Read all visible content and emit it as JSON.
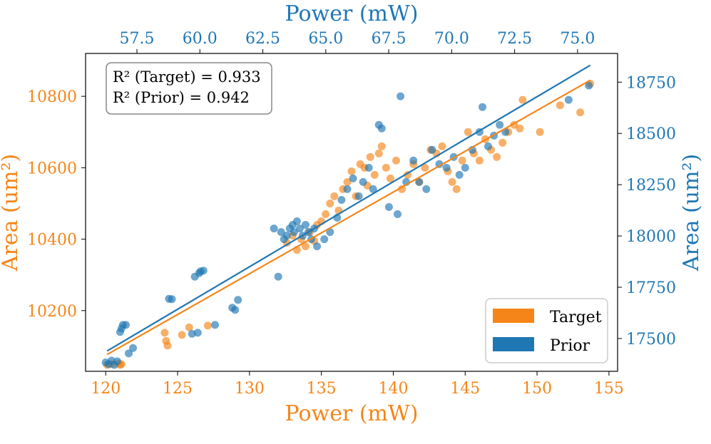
{
  "chart_data": {
    "type": "scatter",
    "annotation": [
      "R² (Target) = 0.933",
      "R² (Prior) = 0.942"
    ],
    "axes": {
      "bottom": {
        "label": "Power (mW)",
        "range": [
          118.6,
          155.6
        ],
        "ticks": [
          120,
          125,
          130,
          135,
          140,
          145,
          150,
          155
        ],
        "color": "#f58518"
      },
      "top": {
        "label": "Power (mW)",
        "range": [
          55.46,
          76.59
        ],
        "ticks": [
          "57.5",
          "60.0",
          "62.5",
          "65.0",
          "67.5",
          "70.0",
          "72.5",
          "75.0"
        ],
        "color": "#1f77b4"
      },
      "left": {
        "label": "Area (um²)",
        "range": [
          10030,
          10920
        ],
        "ticks": [
          10200,
          10400,
          10600,
          10800
        ],
        "color": "#f58518"
      },
      "right": {
        "label": "Area (um²)",
        "range": [
          17340,
          18890
        ],
        "ticks": [
          17500,
          17750,
          18000,
          18250,
          18500,
          18750
        ],
        "color": "#1f77b4"
      }
    },
    "grid": false,
    "legend": {
      "placement": "bottom-right",
      "entries": [
        {
          "name": "Target",
          "color": "#f58518"
        },
        {
          "name": "Prior",
          "color": "#1f77b4"
        }
      ]
    },
    "series": [
      {
        "name": "Target",
        "color": "#f58518",
        "fit_line": [
          [
            120.1,
            10077
          ],
          [
            153.7,
            10845
          ]
        ],
        "points": [
          [
            120.1,
            10048
          ],
          [
            120.4,
            10050
          ],
          [
            120.9,
            10052
          ],
          [
            121.0,
            10048
          ],
          [
            121.1,
            10050
          ],
          [
            124.1,
            10138
          ],
          [
            124.2,
            10115
          ],
          [
            124.3,
            10102
          ],
          [
            125.3,
            10132
          ],
          [
            125.8,
            10153
          ],
          [
            127.1,
            10158
          ],
          [
            132.6,
            10390
          ],
          [
            133.0,
            10410
          ],
          [
            133.3,
            10370
          ],
          [
            133.6,
            10400
          ],
          [
            133.9,
            10380
          ],
          [
            134.2,
            10420
          ],
          [
            134.5,
            10395
          ],
          [
            134.7,
            10440
          ],
          [
            135.0,
            10450
          ],
          [
            135.3,
            10470
          ],
          [
            135.6,
            10500
          ],
          [
            135.9,
            10520
          ],
          [
            136.2,
            10480
          ],
          [
            136.5,
            10540
          ],
          [
            136.8,
            10560
          ],
          [
            137.1,
            10590
          ],
          [
            137.4,
            10520
          ],
          [
            137.7,
            10610
          ],
          [
            138.0,
            10600
          ],
          [
            138.2,
            10550
          ],
          [
            138.4,
            10630
          ],
          [
            138.7,
            10580
          ],
          [
            139.0,
            10640
          ],
          [
            139.2,
            10660
          ],
          [
            139.5,
            10600
          ],
          [
            139.8,
            10570
          ],
          [
            140.2,
            10620
          ],
          [
            140.6,
            10540
          ],
          [
            141.0,
            10580
          ],
          [
            141.4,
            10610
          ],
          [
            141.8,
            10560
          ],
          [
            142.2,
            10600
          ],
          [
            142.6,
            10650
          ],
          [
            143.0,
            10640
          ],
          [
            143.4,
            10660
          ],
          [
            143.8,
            10590
          ],
          [
            144.1,
            10560
          ],
          [
            144.4,
            10540
          ],
          [
            144.8,
            10620
          ],
          [
            145.2,
            10700
          ],
          [
            145.6,
            10640
          ],
          [
            146.0,
            10620
          ],
          [
            146.4,
            10680
          ],
          [
            146.8,
            10650
          ],
          [
            147.2,
            10630
          ],
          [
            147.6,
            10670
          ],
          [
            148.0,
            10700
          ],
          [
            148.4,
            10720
          ],
          [
            148.8,
            10710
          ],
          [
            149.0,
            10790
          ],
          [
            150.2,
            10700
          ],
          [
            151.6,
            10775
          ],
          [
            153.0,
            10755
          ],
          [
            153.7,
            10835
          ]
        ]
      },
      {
        "name": "Prior",
        "color": "#1f77b4",
        "fit_line": [
          [
            120.1,
            10087
          ],
          [
            153.7,
            10887
          ]
        ],
        "points": [
          [
            120.0,
            10055
          ],
          [
            120.2,
            10050
          ],
          [
            120.4,
            10060
          ],
          [
            120.6,
            10048
          ],
          [
            120.8,
            10058
          ],
          [
            121.0,
            10140
          ],
          [
            121.1,
            10150
          ],
          [
            121.2,
            10160
          ],
          [
            121.4,
            10160
          ],
          [
            121.6,
            10080
          ],
          [
            121.9,
            10095
          ],
          [
            124.4,
            10233
          ],
          [
            124.6,
            10232
          ],
          [
            126.0,
            10135
          ],
          [
            126.4,
            10138
          ],
          [
            126.2,
            10295
          ],
          [
            126.5,
            10305
          ],
          [
            126.6,
            10310
          ],
          [
            126.8,
            10312
          ],
          [
            127.6,
            10160
          ],
          [
            128.8,
            10208
          ],
          [
            129.0,
            10202
          ],
          [
            129.2,
            10230
          ],
          [
            132.0,
            10295
          ],
          [
            131.7,
            10430
          ],
          [
            132.2,
            10420
          ],
          [
            132.4,
            10400
          ],
          [
            132.6,
            10410
          ],
          [
            132.8,
            10430
          ],
          [
            133.0,
            10440
          ],
          [
            133.1,
            10420
          ],
          [
            133.3,
            10450
          ],
          [
            133.5,
            10430
          ],
          [
            133.7,
            10410
          ],
          [
            133.9,
            10440
          ],
          [
            134.1,
            10420
          ],
          [
            134.3,
            10400
          ],
          [
            134.5,
            10430
          ],
          [
            134.7,
            10380
          ],
          [
            135.2,
            10400
          ],
          [
            135.6,
            10420
          ],
          [
            136.1,
            10460
          ],
          [
            136.4,
            10510
          ],
          [
            136.8,
            10540
          ],
          [
            137.2,
            10570
          ],
          [
            137.6,
            10520
          ],
          [
            137.9,
            10560
          ],
          [
            138.3,
            10600
          ],
          [
            138.6,
            10540
          ],
          [
            139.0,
            10720
          ],
          [
            139.2,
            10710
          ],
          [
            139.7,
            10490
          ],
          [
            140.3,
            10470
          ],
          [
            140.5,
            10800
          ],
          [
            140.9,
            10560
          ],
          [
            141.4,
            10620
          ],
          [
            141.8,
            10560
          ],
          [
            142.3,
            10540
          ],
          [
            142.7,
            10650
          ],
          [
            143.2,
            10610
          ],
          [
            143.7,
            10600
          ],
          [
            144.2,
            10630
          ],
          [
            144.6,
            10580
          ],
          [
            145.0,
            10600
          ],
          [
            145.5,
            10650
          ],
          [
            146.0,
            10700
          ],
          [
            146.2,
            10770
          ],
          [
            146.6,
            10660
          ],
          [
            147.0,
            10690
          ],
          [
            147.4,
            10720
          ],
          [
            147.8,
            10700
          ],
          [
            152.2,
            10790
          ],
          [
            153.6,
            10830
          ]
        ]
      }
    ]
  }
}
